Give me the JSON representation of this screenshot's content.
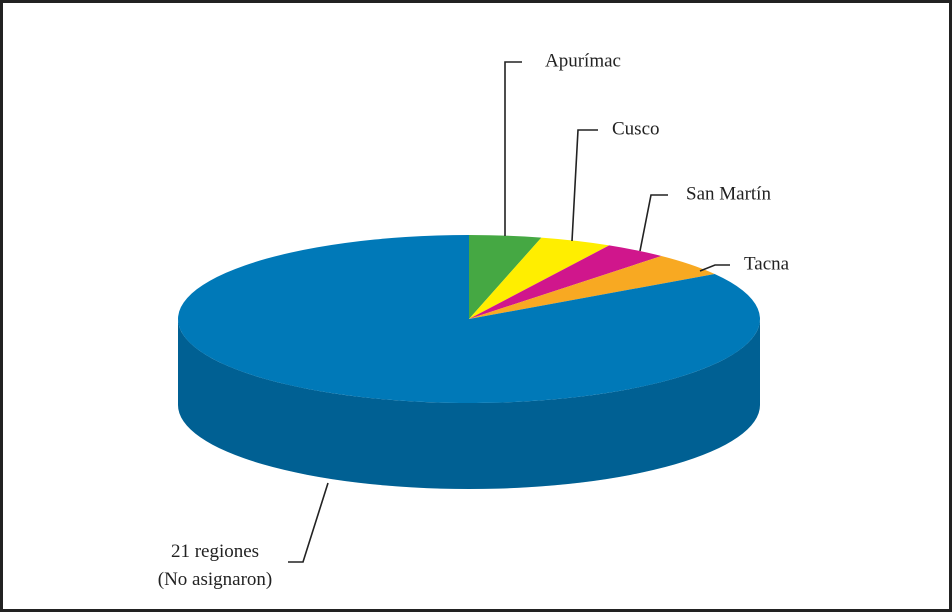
{
  "chart_data": {
    "type": "pie",
    "three_d": true,
    "categories": [
      "Apurímac",
      "Cusco",
      "San Martín",
      "Tacna",
      "21 regiones\n(No asignaron)"
    ],
    "values": [
      4,
      4,
      3.5,
      4.5,
      84
    ],
    "colors": [
      "#45a843",
      "#ffee00",
      "#d0168c",
      "#f8a922",
      "#0079b8"
    ]
  }
}
